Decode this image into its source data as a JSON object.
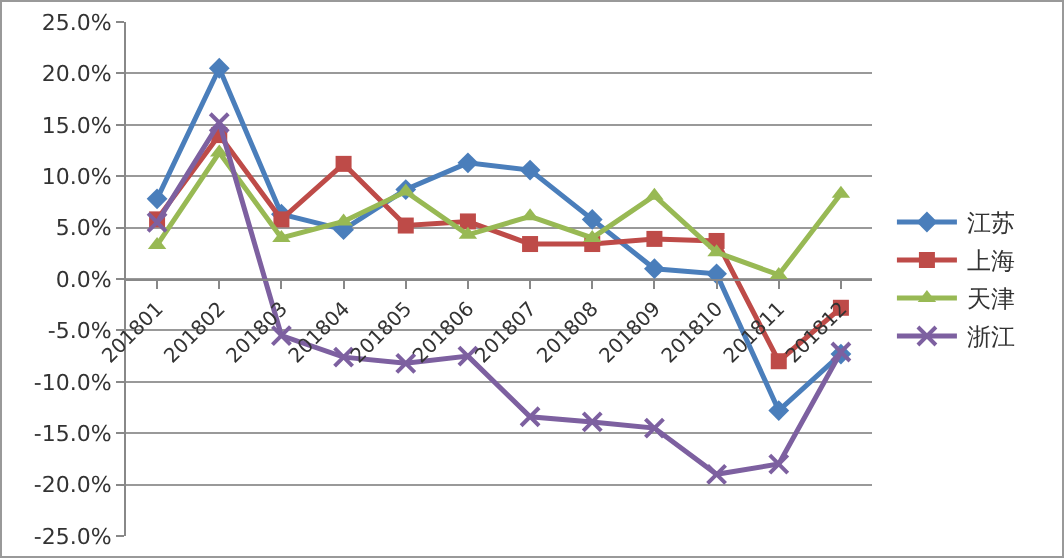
{
  "chart_data": {
    "type": "line",
    "categories": [
      "201801",
      "201802",
      "201803",
      "201804",
      "201805",
      "201806",
      "201807",
      "201808",
      "201809",
      "201810",
      "201811",
      "201812"
    ],
    "series": [
      {
        "name": "江苏",
        "color": "#4a7ebb",
        "marker": "diamond",
        "values": [
          7.8,
          20.5,
          6.3,
          4.8,
          8.7,
          11.3,
          10.6,
          5.8,
          1.0,
          0.5,
          -12.8,
          -7.3
        ]
      },
      {
        "name": "上海",
        "color": "#be4b48",
        "marker": "square",
        "values": [
          5.8,
          14.0,
          5.8,
          11.2,
          5.2,
          5.6,
          3.4,
          3.4,
          3.9,
          3.7,
          -8.0,
          -2.8
        ]
      },
      {
        "name": "天津",
        "color": "#98b954",
        "marker": "triangle",
        "values": [
          3.3,
          12.3,
          4.0,
          5.6,
          8.5,
          4.3,
          6.1,
          4.0,
          8.1,
          2.6,
          0.4,
          8.3
        ]
      },
      {
        "name": "浙江",
        "color": "#7d60a0",
        "marker": "cross",
        "values": [
          5.5,
          15.2,
          -5.5,
          -7.6,
          -8.2,
          -7.5,
          -13.4,
          -13.9,
          -14.5,
          -19.0,
          -18.0,
          -7.1
        ]
      }
    ],
    "ylim": [
      -25,
      25
    ],
    "yticks": [
      {
        "value": -25,
        "label": "-25.0%"
      },
      {
        "value": -20,
        "label": "-20.0%"
      },
      {
        "value": -15,
        "label": "-15.0%"
      },
      {
        "value": -10,
        "label": "-10.0%"
      },
      {
        "value": -5,
        "label": "-5.0%"
      },
      {
        "value": 0,
        "label": "0.0%"
      },
      {
        "value": 5,
        "label": "5.0%"
      },
      {
        "value": 10,
        "label": "10.0%"
      },
      {
        "value": 15,
        "label": "15.0%"
      },
      {
        "value": 20,
        "label": "20.0%"
      },
      {
        "value": 25,
        "label": "25.0%"
      }
    ],
    "grid": "y",
    "legend": "right",
    "line_style": "solid"
  }
}
